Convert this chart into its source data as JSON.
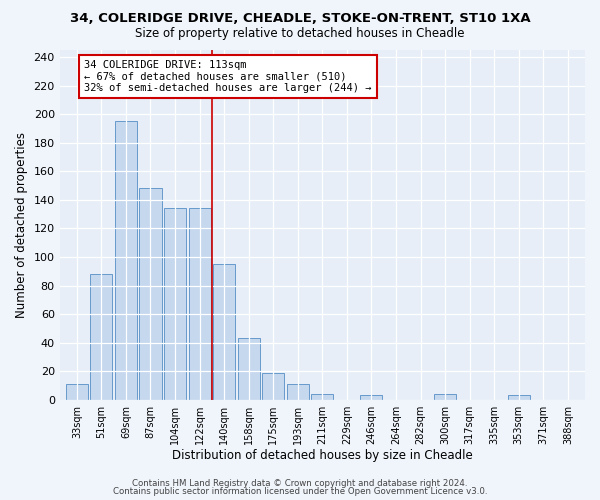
{
  "title": "34, COLERIDGE DRIVE, CHEADLE, STOKE-ON-TRENT, ST10 1XA",
  "subtitle": "Size of property relative to detached houses in Cheadle",
  "xlabel": "Distribution of detached houses by size in Cheadle",
  "ylabel": "Number of detached properties",
  "bar_labels": [
    "33sqm",
    "51sqm",
    "69sqm",
    "87sqm",
    "104sqm",
    "122sqm",
    "140sqm",
    "158sqm",
    "175sqm",
    "193sqm",
    "211sqm",
    "229sqm",
    "246sqm",
    "264sqm",
    "282sqm",
    "300sqm",
    "317sqm",
    "335sqm",
    "353sqm",
    "371sqm",
    "388sqm"
  ],
  "bar_values": [
    11,
    88,
    195,
    148,
    134,
    134,
    95,
    43,
    19,
    11,
    4,
    0,
    3,
    0,
    0,
    4,
    0,
    0,
    3,
    0,
    0
  ],
  "bar_color": "#c5d8ee",
  "bar_edge_color": "#6699cc",
  "vline_x_index": 5.5,
  "vline_color": "#cc0000",
  "annotation_text": "34 COLERIDGE DRIVE: 113sqm\n← 67% of detached houses are smaller (510)\n32% of semi-detached houses are larger (244) →",
  "annotation_box_edge": "#cc0000",
  "ylim": [
    0,
    245
  ],
  "yticks": [
    0,
    20,
    40,
    60,
    80,
    100,
    120,
    140,
    160,
    180,
    200,
    220,
    240
  ],
  "footer1": "Contains HM Land Registry data © Crown copyright and database right 2024.",
  "footer2": "Contains public sector information licensed under the Open Government Licence v3.0.",
  "bg_color": "#f0f4fb",
  "plot_bg_color": "#e8eef8"
}
